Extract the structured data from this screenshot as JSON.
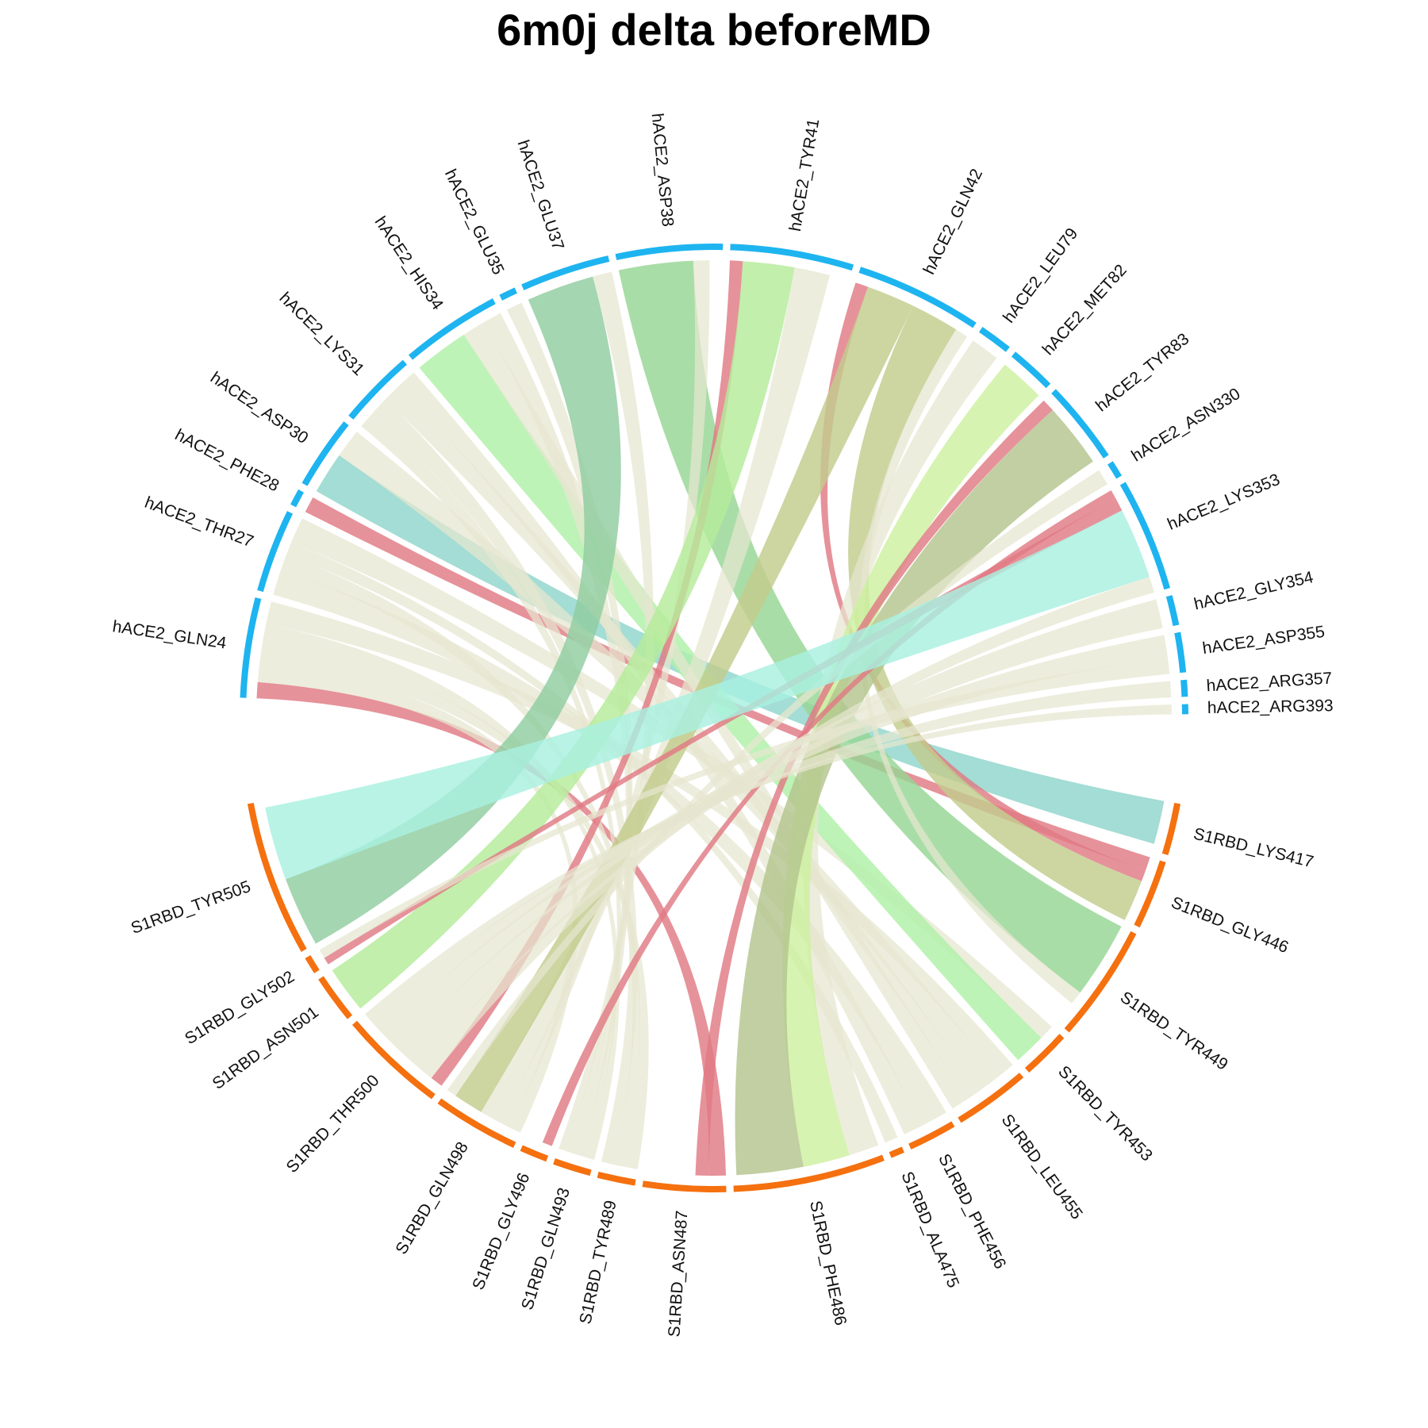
{
  "title": "6m0j delta beforeMD",
  "colors": {
    "hace2_track": "#1eb4f0",
    "s1rbd_track": "#f5700f",
    "default_ribbon": "#dcdcc0"
  },
  "chart_data": {
    "type": "chord",
    "groups": [
      {
        "name": "hACE2",
        "side": "top"
      },
      {
        "name": "S1RBD",
        "side": "bottom"
      }
    ],
    "hace2_residues": [
      {
        "label": "hACE2_GLN24",
        "size": 3
      },
      {
        "label": "hACE2_THR27",
        "size": 2.5
      },
      {
        "label": "hACE2_PHE28",
        "size": 0.5
      },
      {
        "label": "hACE2_ASP30",
        "size": 2.2
      },
      {
        "label": "hACE2_LYS31",
        "size": 2.3
      },
      {
        "label": "hACE2_HIS34",
        "size": 3
      },
      {
        "label": "hACE2_GLU35",
        "size": 0.5
      },
      {
        "label": "hACE2_GLU37",
        "size": 2.7
      },
      {
        "label": "hACE2_ASP38",
        "size": 3.2
      },
      {
        "label": "hACE2_TYR41",
        "size": 3.7
      },
      {
        "label": "hACE2_GLN42",
        "size": 3.8
      },
      {
        "label": "hACE2_LEU79",
        "size": 1
      },
      {
        "label": "hACE2_MET82",
        "size": 1.4
      },
      {
        "label": "hACE2_TYR83",
        "size": 2.5
      },
      {
        "label": "hACE2_ASN330",
        "size": 0.5
      },
      {
        "label": "hACE2_LYS353",
        "size": 3.4
      },
      {
        "label": "hACE2_GLY354",
        "size": 0.9
      },
      {
        "label": "hACE2_ASP355",
        "size": 1.2
      },
      {
        "label": "hACE2_ARG357",
        "size": 0.5
      },
      {
        "label": "hACE2_ARG393",
        "size": 0.3
      }
    ],
    "s1rbd_residues": [
      {
        "label": "S1RBD_LYS417",
        "size": 1.5
      },
      {
        "label": "S1RBD_GLY446",
        "size": 2
      },
      {
        "label": "S1RBD_TYR449",
        "size": 3.4
      },
      {
        "label": "S1RBD_TYR453",
        "size": 1.4
      },
      {
        "label": "S1RBD_LEU455",
        "size": 2.2
      },
      {
        "label": "S1RBD_PHE456",
        "size": 1.4
      },
      {
        "label": "S1RBD_ALA475",
        "size": 0.4
      },
      {
        "label": "S1RBD_PHE486",
        "size": 4.4
      },
      {
        "label": "S1RBD_ASN487",
        "size": 2.4
      },
      {
        "label": "S1RBD_TYR489",
        "size": 1.1
      },
      {
        "label": "S1RBD_GLN493",
        "size": 1.1
      },
      {
        "label": "S1RBD_GLY496",
        "size": 0.8
      },
      {
        "label": "S1RBD_GLN498",
        "size": 2.5
      },
      {
        "label": "S1RBD_THR500",
        "size": 3.1
      },
      {
        "label": "S1RBD_ASN501",
        "size": 1.4
      },
      {
        "label": "S1RBD_GLY502",
        "size": 0.5
      },
      {
        "label": "S1RBD_TYR505",
        "size": 4.5
      }
    ],
    "links": [
      {
        "from": "hACE2_GLN24",
        "to": "S1RBD_ASN487",
        "value": 0.5,
        "color": "#e07a84"
      },
      {
        "from": "hACE2_GLN24",
        "to": "S1RBD_GLN498",
        "value": 0.6,
        "color": "#e6e6d0"
      },
      {
        "from": "hACE2_GLN24",
        "to": "S1RBD_TYR489",
        "value": 0.6,
        "color": "#e6e6d0"
      },
      {
        "from": "hACE2_GLN24",
        "to": "S1RBD_GLN493",
        "value": 0.6,
        "color": "#e6e6d0"
      },
      {
        "from": "hACE2_GLN24",
        "to": "S1RBD_LEU455",
        "value": 0.7,
        "color": "#e6e6d0"
      },
      {
        "from": "hACE2_THR27",
        "to": "S1RBD_PHE456",
        "value": 0.8,
        "color": "#e6e6d0"
      },
      {
        "from": "hACE2_THR27",
        "to": "S1RBD_TYR489",
        "value": 0.5,
        "color": "#e6e6d0"
      },
      {
        "from": "hACE2_THR27",
        "to": "S1RBD_ALA475",
        "value": 0.4,
        "color": "#e6e6d0"
      },
      {
        "from": "hACE2_THR27",
        "to": "S1RBD_TYR453",
        "value": 0.8,
        "color": "#e6e6d0"
      },
      {
        "from": "hACE2_PHE28",
        "to": "S1RBD_GLY446",
        "value": 0.5,
        "color": "#e07a84"
      },
      {
        "from": "hACE2_ASP30",
        "to": "S1RBD_LYS417",
        "value": 1.3,
        "color": "#8fd6cc"
      },
      {
        "from": "hACE2_ASP30",
        "to": "S1RBD_LEU455",
        "value": 0.9,
        "color": "#e6e6d0"
      },
      {
        "from": "hACE2_LYS31",
        "to": "S1RBD_GLN493",
        "value": 0.5,
        "color": "#e6e6d0"
      },
      {
        "from": "hACE2_LYS31",
        "to": "S1RBD_TYR489",
        "value": 0.6,
        "color": "#e6e6d0"
      },
      {
        "from": "hACE2_LYS31",
        "to": "S1RBD_LEU455",
        "value": 0.6,
        "color": "#e6e6d0"
      },
      {
        "from": "hACE2_LYS31",
        "to": "S1RBD_PHE456",
        "value": 0.6,
        "color": "#e6e6d0"
      },
      {
        "from": "hACE2_HIS34",
        "to": "S1RBD_TYR453",
        "value": 1.7,
        "color": "#b0f0a8"
      },
      {
        "from": "hACE2_HIS34",
        "to": "S1RBD_LEU455",
        "value": 0.7,
        "color": "#e6e6d0"
      },
      {
        "from": "hACE2_HIS34",
        "to": "S1RBD_GLN493",
        "value": 0.6,
        "color": "#e6e6d0"
      },
      {
        "from": "hACE2_GLU35",
        "to": "S1RBD_GLN493",
        "value": 0.5,
        "color": "#e6e6d0"
      },
      {
        "from": "hACE2_GLU37",
        "to": "S1RBD_TYR505",
        "value": 2.1,
        "color": "#90cda0"
      },
      {
        "from": "hACE2_GLU37",
        "to": "S1RBD_GLN493",
        "value": 0.6,
        "color": "#e6e6d0"
      },
      {
        "from": "hACE2_ASP38",
        "to": "S1RBD_TYR449",
        "value": 2.3,
        "color": "#96d694"
      },
      {
        "from": "hACE2_ASP38",
        "to": "S1RBD_GLN498",
        "value": 0.5,
        "color": "#e6e6d0"
      },
      {
        "from": "hACE2_TYR41",
        "to": "S1RBD_THR500",
        "value": 0.4,
        "color": "#e07a84"
      },
      {
        "from": "hACE2_TYR41",
        "to": "S1RBD_ASN501",
        "value": 1.6,
        "color": "#b4ec9a"
      },
      {
        "from": "hACE2_TYR41",
        "to": "S1RBD_GLN498",
        "value": 1.1,
        "color": "#e6e6d0"
      },
      {
        "from": "hACE2_GLN42",
        "to": "S1RBD_GLY446",
        "value": 0.4,
        "color": "#e07a84"
      },
      {
        "from": "hACE2_GLN42",
        "to": "S1RBD_GLN498",
        "value": 1.5,
        "color": "#c2cc8c"
      },
      {
        "from": "hACE2_GLN42",
        "to": "S1RBD_GLY446",
        "value": 1.5,
        "color": "#c2cc8c"
      },
      {
        "from": "hACE2_GLN42",
        "to": "S1RBD_TYR449",
        "value": 0.4,
        "color": "#e6e6d0"
      },
      {
        "from": "hACE2_LEU79",
        "to": "S1RBD_PHE486",
        "value": 0.9,
        "color": "#e6e6d0"
      },
      {
        "from": "hACE2_MET82",
        "to": "S1RBD_PHE486",
        "value": 1.4,
        "color": "#cdf0a0"
      },
      {
        "from": "hACE2_TYR83",
        "to": "S1RBD_ASN487",
        "value": 0.4,
        "color": "#e07a84"
      },
      {
        "from": "hACE2_TYR83",
        "to": "S1RBD_PHE486",
        "value": 2.0,
        "color": "#b3c48e"
      },
      {
        "from": "hACE2_ASN330",
        "to": "S1RBD_GLN498",
        "value": 0.5,
        "color": "#e6e6d0"
      },
      {
        "from": "hACE2_LYS353",
        "to": "S1RBD_GLY496",
        "value": 0.3,
        "color": "#e07a84"
      },
      {
        "from": "hACE2_LYS353",
        "to": "S1RBD_GLY502",
        "value": 0.4,
        "color": "#e07a84"
      },
      {
        "from": "hACE2_LYS353",
        "to": "S1RBD_TYR505",
        "value": 2.2,
        "color": "#a8f0e0"
      },
      {
        "from": "hACE2_LYS353",
        "to": "S1RBD_THR500",
        "value": 0.5,
        "color": "#e6e6d0"
      },
      {
        "from": "hACE2_GLY354",
        "to": "S1RBD_THR500",
        "value": 0.9,
        "color": "#e6e6d0"
      },
      {
        "from": "hACE2_ASP355",
        "to": "S1RBD_THR500",
        "value": 0.7,
        "color": "#e6e6d0"
      },
      {
        "from": "hACE2_ASP355",
        "to": "S1RBD_GLY502",
        "value": 0.5,
        "color": "#e6e6d0"
      },
      {
        "from": "hACE2_ARG357",
        "to": "S1RBD_THR500",
        "value": 0.5,
        "color": "#e6e6d0"
      },
      {
        "from": "hACE2_ARG393",
        "to": "S1RBD_THR500",
        "value": 0.3,
        "color": "#e6e6d0"
      }
    ]
  }
}
